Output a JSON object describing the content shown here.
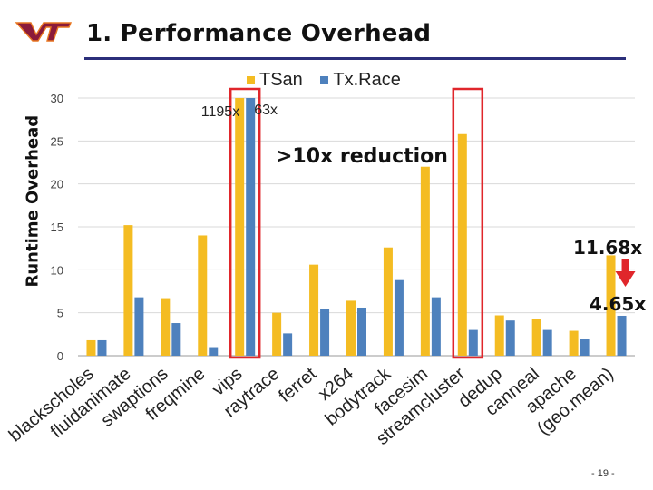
{
  "slide": {
    "title": "1. Performance Overhead",
    "page_number": "- 19 -",
    "logo": "VT"
  },
  "annotations": {
    "reduction": ">10x reduction",
    "tsan_overflow_label": "1195x",
    "txrace_overflow_label": "63x",
    "mean_tsan_label": "11.68x",
    "mean_txrace_label": "4.65x"
  },
  "colors": {
    "tsan": "#F4BC22",
    "txrace": "#4E81BD",
    "highlight": "#E0262B",
    "arrow": "#E0262B",
    "title_rule": "#2B2F7A",
    "logo": "#8B1A3A"
  },
  "chart_data": {
    "type": "bar",
    "ylabel": "Runtime Overhead",
    "ylim": [
      0,
      30
    ],
    "yticks": [
      0,
      5,
      10,
      15,
      20,
      25,
      30
    ],
    "categories": [
      "blackscholes",
      "fluidanimate",
      "swaptions",
      "freqmine",
      "vips",
      "raytrace",
      "ferret",
      "x264",
      "bodytrack",
      "facesim",
      "streamcluster",
      "dedup",
      "canneal",
      "apache",
      "(geo.mean)"
    ],
    "series": [
      {
        "name": "TSan",
        "values": [
          1.8,
          15.2,
          6.7,
          14.0,
          30.0,
          5.0,
          10.6,
          6.4,
          12.6,
          22.0,
          25.8,
          4.7,
          4.3,
          2.9,
          11.68
        ]
      },
      {
        "name": "Tx.Race",
        "values": [
          1.8,
          6.8,
          3.8,
          1.0,
          30.0,
          2.6,
          5.4,
          5.6,
          8.8,
          6.8,
          3.0,
          4.1,
          3.0,
          1.9,
          4.65
        ]
      }
    ],
    "highlighted_categories": [
      "vips",
      "streamcluster"
    ]
  }
}
